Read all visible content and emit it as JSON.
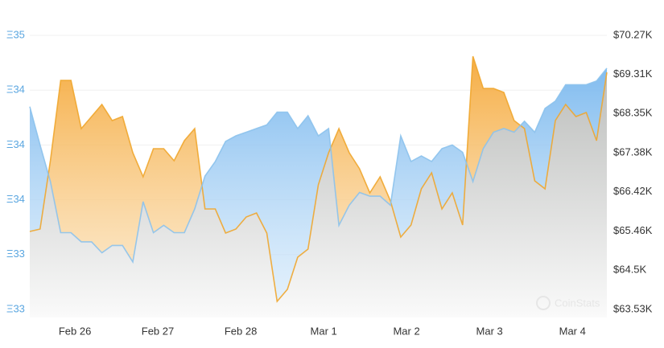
{
  "chart_data": {
    "type": "line",
    "watermark": "CoinStats",
    "xlim": [
      0,
      56
    ],
    "xticks": [
      {
        "value": 4.38,
        "label": "Feb 26"
      },
      {
        "value": 12.42,
        "label": "Feb 27"
      },
      {
        "value": 20.47,
        "label": "Feb 28"
      },
      {
        "value": 28.52,
        "label": "Mar 1"
      },
      {
        "value": 36.56,
        "label": "Mar 2"
      },
      {
        "value": 44.61,
        "label": "Mar 3"
      },
      {
        "value": 52.66,
        "label": "Mar 4"
      }
    ],
    "ylim": [
      33.05,
      34.55
    ],
    "yticks": [
      {
        "value": 34.55,
        "label": "Ξ35"
      },
      {
        "value": 34.25,
        "label": "Ξ34"
      },
      {
        "value": 33.95,
        "label": "Ξ34"
      },
      {
        "value": 33.65,
        "label": "Ξ34"
      },
      {
        "value": 33.35,
        "label": "Ξ33"
      },
      {
        "value": 33.05,
        "label": "Ξ33"
      }
    ],
    "y2lim": [
      63530,
      70270
    ],
    "y2ticks": [
      {
        "value": 70270,
        "label": "$70.27K"
      },
      {
        "value": 69310,
        "label": "$69.31K"
      },
      {
        "value": 68350,
        "label": "$68.35K"
      },
      {
        "value": 67380,
        "label": "$67.38K"
      },
      {
        "value": 66420,
        "label": "$66.42K"
      },
      {
        "value": 65460,
        "label": "$65.46K"
      },
      {
        "value": 64500,
        "label": "$64.5K"
      },
      {
        "value": 63530,
        "label": "$63.53K"
      }
    ],
    "grid": true,
    "series": [
      {
        "color": "#8cc2ec",
        "fill": "#a9d2f5",
        "axis": "y",
        "values": [
          34.16,
          33.95,
          33.75,
          33.47,
          33.47,
          33.42,
          33.42,
          33.36,
          33.4,
          33.4,
          33.31,
          33.64,
          33.47,
          33.51,
          33.47,
          33.47,
          33.6,
          33.78,
          33.86,
          33.97,
          34.0,
          34.02,
          34.04,
          34.06,
          34.13,
          34.13,
          34.04,
          34.11,
          34.0,
          34.04,
          33.51,
          33.62,
          33.69,
          33.67,
          33.67,
          33.62,
          34.0,
          33.86,
          33.89,
          33.86,
          33.93,
          33.95,
          33.91,
          33.75,
          33.93,
          34.02,
          34.04,
          34.02,
          34.08,
          34.02,
          34.15,
          34.19,
          34.28,
          34.28,
          34.28,
          34.3,
          34.37
        ]
      },
      {
        "color": "#f0a62e",
        "fill": "#f7b85a",
        "axis": "y2",
        "values": [
          65447,
          65507,
          67187,
          69163,
          69163,
          67977,
          68274,
          68570,
          68175,
          68274,
          67384,
          66791,
          67483,
          67483,
          67187,
          67681,
          67977,
          66001,
          66001,
          65408,
          65507,
          65803,
          65902,
          65408,
          63728,
          64024,
          64815,
          65013,
          66594,
          67384,
          67977,
          67384,
          66989,
          66396,
          66791,
          66198,
          65309,
          65605,
          66495,
          66890,
          66001,
          66396,
          65605,
          69756,
          68966,
          68966,
          68867,
          68175,
          67977,
          66693,
          66495,
          68175,
          68570,
          68274,
          68373,
          67681,
          69361
        ]
      }
    ]
  }
}
